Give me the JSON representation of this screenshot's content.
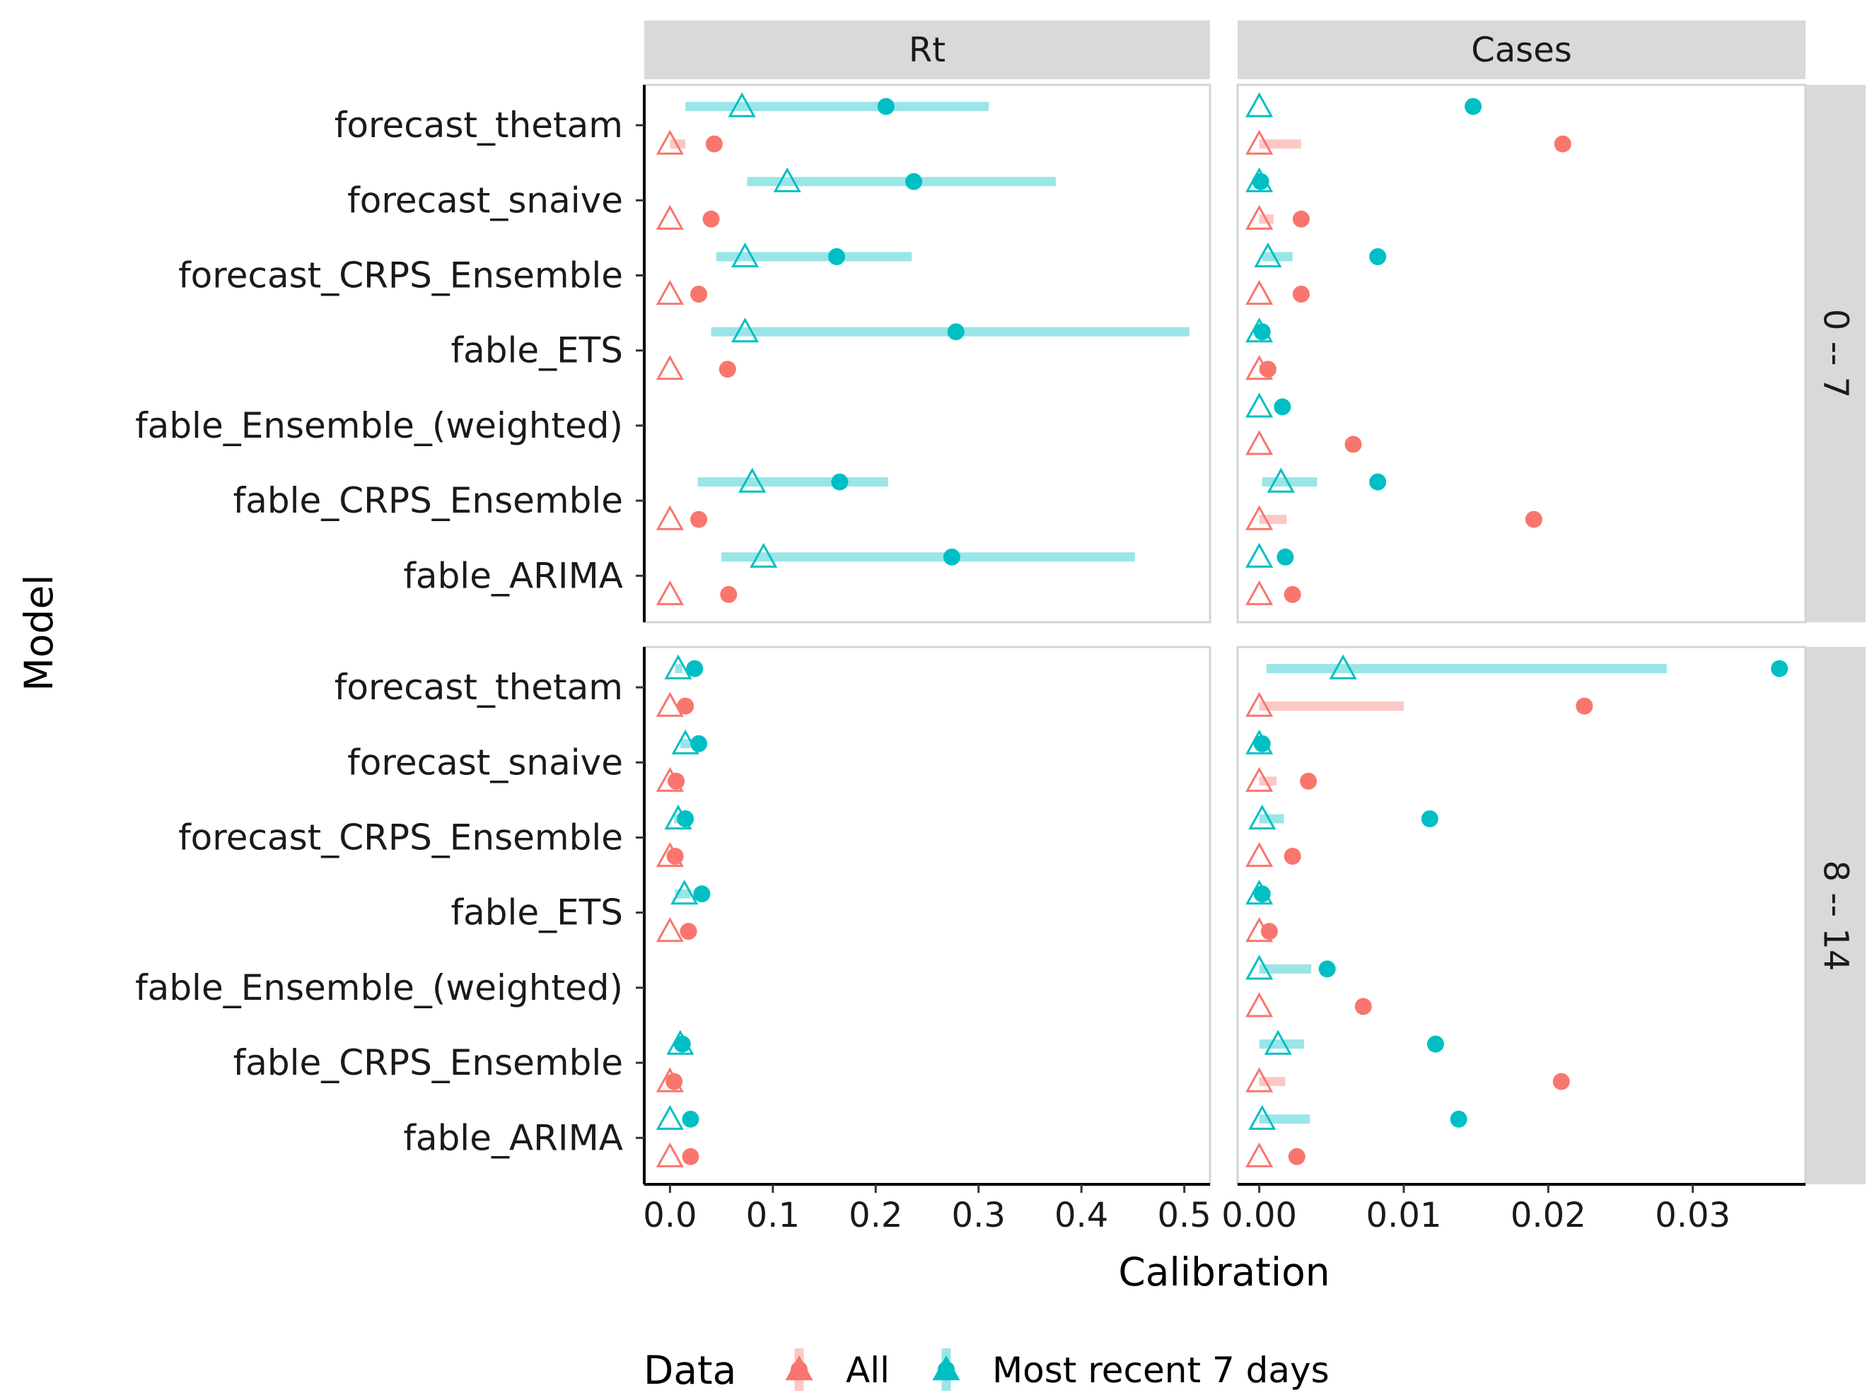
{
  "chart_data": {
    "type": "scatter",
    "title": "",
    "xlabel": "Calibration",
    "ylabel": "Model",
    "legend": {
      "title": "Data",
      "position": "bottom",
      "entries": [
        {
          "name": "All",
          "color": "#F8766D"
        },
        {
          "name": "Most recent 7 days",
          "color": "#00BFC4"
        }
      ]
    },
    "models": [
      "fable_ARIMA",
      "fable_CRPS_Ensemble",
      "fable_Ensemble_(weighted)",
      "fable_ETS",
      "forecast_CRPS_Ensemble",
      "forecast_snaive",
      "forecast_thetam"
    ],
    "columns": [
      {
        "label": "Rt",
        "xlim": [
          -0.025,
          0.525
        ],
        "ticks": [
          "0.0",
          "0.1",
          "0.2",
          "0.3",
          "0.4",
          "0.5"
        ],
        "tick_values": [
          0,
          0.1,
          0.2,
          0.3,
          0.4,
          0.5
        ]
      },
      {
        "label": "Cases",
        "xlim": [
          -0.0015,
          0.0378
        ],
        "ticks": [
          "0.00",
          "0.01",
          "0.02",
          "0.03"
        ],
        "tick_values": [
          0,
          0.01,
          0.02,
          0.03
        ]
      }
    ],
    "rows": [
      {
        "label": "0 -- 7"
      },
      {
        "label": "8 -- 14"
      }
    ],
    "panels": [
      {
        "row": 0,
        "col": 0,
        "points": [
          {
            "model": "forecast_thetam",
            "series": "Most recent 7 days",
            "lower": 0.015,
            "upper": 0.31,
            "median": 0.07,
            "mean": 0.21
          },
          {
            "model": "forecast_thetam",
            "series": "All",
            "lower": 0.0,
            "upper": 0.015,
            "median": 0.0,
            "mean": 0.043
          },
          {
            "model": "forecast_snaive",
            "series": "Most recent 7 days",
            "lower": 0.075,
            "upper": 0.375,
            "median": 0.114,
            "mean": 0.237
          },
          {
            "model": "forecast_snaive",
            "series": "All",
            "lower": 0.0,
            "upper": 0.0,
            "median": 0.0,
            "mean": 0.04
          },
          {
            "model": "forecast_CRPS_Ensemble",
            "series": "Most recent 7 days",
            "lower": 0.045,
            "upper": 0.235,
            "median": 0.073,
            "mean": 0.162
          },
          {
            "model": "forecast_CRPS_Ensemble",
            "series": "All",
            "lower": 0.0,
            "upper": 0.0,
            "median": 0.0,
            "mean": 0.028
          },
          {
            "model": "fable_ETS",
            "series": "Most recent 7 days",
            "lower": 0.04,
            "upper": 0.505,
            "median": 0.073,
            "mean": 0.278
          },
          {
            "model": "fable_ETS",
            "series": "All",
            "lower": 0.0,
            "upper": 0.0,
            "median": 0.0,
            "mean": 0.056
          },
          {
            "model": "fable_CRPS_Ensemble",
            "series": "Most recent 7 days",
            "lower": 0.027,
            "upper": 0.212,
            "median": 0.08,
            "mean": 0.165
          },
          {
            "model": "fable_CRPS_Ensemble",
            "series": "All",
            "lower": 0.0,
            "upper": 0.0,
            "median": 0.0,
            "mean": 0.028
          },
          {
            "model": "fable_ARIMA",
            "series": "Most recent 7 days",
            "lower": 0.05,
            "upper": 0.452,
            "median": 0.091,
            "mean": 0.274
          },
          {
            "model": "fable_ARIMA",
            "series": "All",
            "lower": 0.0,
            "upper": 0.0,
            "median": 0.0,
            "mean": 0.057
          }
        ]
      },
      {
        "row": 0,
        "col": 1,
        "points": [
          {
            "model": "forecast_thetam",
            "series": "Most recent 7 days",
            "lower": 0.0,
            "upper": 0.0,
            "median": 0.0,
            "mean": 0.0148
          },
          {
            "model": "forecast_thetam",
            "series": "All",
            "lower": 0.0,
            "upper": 0.0029,
            "median": 0.0,
            "mean": 0.021
          },
          {
            "model": "forecast_snaive",
            "series": "Most recent 7 days",
            "lower": 0.0,
            "upper": 0.0001,
            "median": 0.0,
            "mean": 0.0001
          },
          {
            "model": "forecast_snaive",
            "series": "All",
            "lower": 0.0,
            "upper": 0.001,
            "median": 0.0,
            "mean": 0.0029
          },
          {
            "model": "forecast_CRPS_Ensemble",
            "series": "Most recent 7 days",
            "lower": 0.0002,
            "upper": 0.0023,
            "median": 0.0006,
            "mean": 0.0082
          },
          {
            "model": "forecast_CRPS_Ensemble",
            "series": "All",
            "lower": 0.0,
            "upper": 0.0,
            "median": 0.0,
            "mean": 0.0029
          },
          {
            "model": "fable_ETS",
            "series": "Most recent 7 days",
            "lower": 0.0,
            "upper": 0.0002,
            "median": 0.0,
            "mean": 0.0002
          },
          {
            "model": "fable_ETS",
            "series": "All",
            "lower": 0.0,
            "upper": 0.0004,
            "median": 0.0,
            "mean": 0.0006
          },
          {
            "model": "fable_Ensemble_(weighted)",
            "series": "Most recent 7 days",
            "lower": 0.0,
            "upper": 0.0,
            "median": 0.0,
            "mean": 0.0016
          },
          {
            "model": "fable_Ensemble_(weighted)",
            "series": "All",
            "lower": 0.0,
            "upper": 0.0,
            "median": 0.0,
            "mean": 0.0065
          },
          {
            "model": "fable_CRPS_Ensemble",
            "series": "Most recent 7 days",
            "lower": 0.0002,
            "upper": 0.004,
            "median": 0.0015,
            "mean": 0.0082
          },
          {
            "model": "fable_CRPS_Ensemble",
            "series": "All",
            "lower": 0.0,
            "upper": 0.0019,
            "median": 0.0,
            "mean": 0.019
          },
          {
            "model": "fable_ARIMA",
            "series": "Most recent 7 days",
            "lower": 0.0,
            "upper": 0.0,
            "median": 0.0,
            "mean": 0.0018
          },
          {
            "model": "fable_ARIMA",
            "series": "All",
            "lower": 0.0,
            "upper": 0.0,
            "median": 0.0,
            "mean": 0.0023
          }
        ]
      },
      {
        "row": 1,
        "col": 0,
        "points": [
          {
            "model": "forecast_thetam",
            "series": "Most recent 7 days",
            "lower": 0.005,
            "upper": 0.012,
            "median": 0.008,
            "mean": 0.024
          },
          {
            "model": "forecast_thetam",
            "series": "All",
            "lower": 0.0,
            "upper": 0.0,
            "median": 0.0,
            "mean": 0.015
          },
          {
            "model": "forecast_snaive",
            "series": "Most recent 7 days",
            "lower": 0.01,
            "upper": 0.02,
            "median": 0.015,
            "mean": 0.028
          },
          {
            "model": "forecast_snaive",
            "series": "All",
            "lower": 0.0,
            "upper": 0.0,
            "median": 0.0,
            "mean": 0.006
          },
          {
            "model": "forecast_CRPS_Ensemble",
            "series": "Most recent 7 days",
            "lower": 0.004,
            "upper": 0.012,
            "median": 0.008,
            "mean": 0.015
          },
          {
            "model": "forecast_CRPS_Ensemble",
            "series": "All",
            "lower": 0.0,
            "upper": 0.0,
            "median": 0.0,
            "mean": 0.005
          },
          {
            "model": "fable_ETS",
            "series": "Most recent 7 days",
            "lower": 0.005,
            "upper": 0.02,
            "median": 0.014,
            "mean": 0.031
          },
          {
            "model": "fable_ETS",
            "series": "All",
            "lower": 0.0,
            "upper": 0.0,
            "median": 0.0,
            "mean": 0.018
          },
          {
            "model": "fable_CRPS_Ensemble",
            "series": "Most recent 7 days",
            "lower": 0.006,
            "upper": 0.015,
            "median": 0.01,
            "mean": 0.012
          },
          {
            "model": "fable_CRPS_Ensemble",
            "series": "All",
            "lower": 0.0,
            "upper": 0.0,
            "median": 0.0,
            "mean": 0.004
          },
          {
            "model": "fable_ARIMA",
            "series": "Most recent 7 days",
            "lower": 0.0,
            "upper": 0.0,
            "median": 0.0,
            "mean": 0.02
          },
          {
            "model": "fable_ARIMA",
            "series": "All",
            "lower": 0.0,
            "upper": 0.0,
            "median": 0.0,
            "mean": 0.02
          }
        ]
      },
      {
        "row": 1,
        "col": 1,
        "points": [
          {
            "model": "forecast_thetam",
            "series": "Most recent 7 days",
            "lower": 0.0005,
            "upper": 0.0282,
            "median": 0.0058,
            "mean": 0.036
          },
          {
            "model": "forecast_thetam",
            "series": "All",
            "lower": 0.0,
            "upper": 0.01,
            "median": 0.0,
            "mean": 0.0225
          },
          {
            "model": "forecast_snaive",
            "series": "Most recent 7 days",
            "lower": 0.0,
            "upper": 0.0001,
            "median": 0.0,
            "mean": 0.0002
          },
          {
            "model": "forecast_snaive",
            "series": "All",
            "lower": 0.0,
            "upper": 0.0012,
            "median": 0.0,
            "mean": 0.0034
          },
          {
            "model": "forecast_CRPS_Ensemble",
            "series": "Most recent 7 days",
            "lower": 0.0,
            "upper": 0.0017,
            "median": 0.0002,
            "mean": 0.0118
          },
          {
            "model": "forecast_CRPS_Ensemble",
            "series": "All",
            "lower": 0.0,
            "upper": 0.0,
            "median": 0.0,
            "mean": 0.0023
          },
          {
            "model": "fable_ETS",
            "series": "Most recent 7 days",
            "lower": 0.0,
            "upper": 0.0002,
            "median": 0.0,
            "mean": 0.0002
          },
          {
            "model": "fable_ETS",
            "series": "All",
            "lower": 0.0,
            "upper": 0.0,
            "median": 0.0,
            "mean": 0.0007
          },
          {
            "model": "fable_Ensemble_(weighted)",
            "series": "Most recent 7 days",
            "lower": 0.0,
            "upper": 0.0036,
            "median": 0.0,
            "mean": 0.0047
          },
          {
            "model": "fable_Ensemble_(weighted)",
            "series": "All",
            "lower": 0.0,
            "upper": 0.0,
            "median": 0.0,
            "mean": 0.0072
          },
          {
            "model": "fable_CRPS_Ensemble",
            "series": "Most recent 7 days",
            "lower": 0.0,
            "upper": 0.0031,
            "median": 0.0013,
            "mean": 0.0122
          },
          {
            "model": "fable_CRPS_Ensemble",
            "series": "All",
            "lower": 0.0,
            "upper": 0.0018,
            "median": 0.0,
            "mean": 0.0209
          },
          {
            "model": "fable_ARIMA",
            "series": "Most recent 7 days",
            "lower": 0.0,
            "upper": 0.0035,
            "median": 0.0002,
            "mean": 0.0138
          },
          {
            "model": "fable_ARIMA",
            "series": "All",
            "lower": 0.0,
            "upper": 0.0,
            "median": 0.0,
            "mean": 0.0026
          }
        ]
      }
    ]
  }
}
